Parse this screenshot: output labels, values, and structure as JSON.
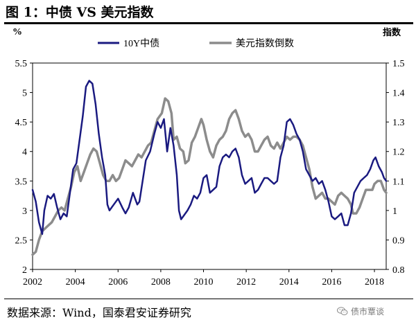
{
  "figure_title": "图 1：中债 VS 美元指数",
  "source_note": "数据来源：Wind，国泰君安证券研究",
  "watermark": {
    "text": "债市覃谈",
    "icon": "wechat-icon"
  },
  "chart_data": {
    "type": "line",
    "title": "",
    "ylabel_left": "%",
    "ylabel_right": "指数",
    "xlim": [
      2002,
      2018.55
    ],
    "ylim_left": [
      2,
      5.5
    ],
    "ylim_right": [
      0.8,
      1.5
    ],
    "x_ticks": [
      2002,
      2004,
      2006,
      2008,
      2010,
      2012,
      2014,
      2016,
      2018
    ],
    "x_tick_labels": [
      "2002",
      "2004",
      "2006",
      "2008",
      "2010",
      "2012",
      "2014",
      "2016",
      "2018"
    ],
    "y_left_ticks": [
      2,
      2.5,
      3,
      3.5,
      4,
      4.5,
      5,
      5.5
    ],
    "y_left_tick_labels": [
      "2",
      "2.5",
      "3",
      "3.5",
      "4",
      "4.5",
      "5",
      "5.5"
    ],
    "y_right_ticks": [
      0.8,
      0.9,
      1.0,
      1.1,
      1.2,
      1.3,
      1.4,
      1.5
    ],
    "y_right_tick_labels": [
      "0.8",
      "0.9",
      "1",
      "1.1",
      "1.2",
      "1.3",
      "1.4",
      "1.5"
    ],
    "grid": false,
    "legend_position": "top-center",
    "series": [
      {
        "name": "10Y中债",
        "axis": "left",
        "color": "#1a1a80",
        "points": [
          [
            2002.0,
            3.35
          ],
          [
            2002.15,
            3.15
          ],
          [
            2002.3,
            2.8
          ],
          [
            2002.45,
            2.6
          ],
          [
            2002.55,
            3.0
          ],
          [
            2002.7,
            3.25
          ],
          [
            2002.85,
            3.2
          ],
          [
            2003.0,
            3.28
          ],
          [
            2003.15,
            3.05
          ],
          [
            2003.3,
            2.85
          ],
          [
            2003.45,
            2.95
          ],
          [
            2003.6,
            2.9
          ],
          [
            2003.75,
            3.3
          ],
          [
            2003.9,
            3.7
          ],
          [
            2004.05,
            3.8
          ],
          [
            2004.2,
            4.2
          ],
          [
            2004.35,
            4.6
          ],
          [
            2004.5,
            5.1
          ],
          [
            2004.65,
            5.2
          ],
          [
            2004.8,
            5.15
          ],
          [
            2004.95,
            4.8
          ],
          [
            2005.1,
            4.3
          ],
          [
            2005.25,
            3.9
          ],
          [
            2005.4,
            3.6
          ],
          [
            2005.5,
            3.1
          ],
          [
            2005.6,
            3.0
          ],
          [
            2005.8,
            3.1
          ],
          [
            2006.0,
            3.2
          ],
          [
            2006.2,
            3.05
          ],
          [
            2006.35,
            2.95
          ],
          [
            2006.5,
            3.05
          ],
          [
            2006.7,
            3.3
          ],
          [
            2006.9,
            3.1
          ],
          [
            2007.0,
            3.15
          ],
          [
            2007.15,
            3.5
          ],
          [
            2007.3,
            3.85
          ],
          [
            2007.5,
            4.0
          ],
          [
            2007.7,
            4.3
          ],
          [
            2007.85,
            4.5
          ],
          [
            2008.0,
            4.4
          ],
          [
            2008.15,
            4.55
          ],
          [
            2008.3,
            4.0
          ],
          [
            2008.45,
            4.4
          ],
          [
            2008.6,
            4.1
          ],
          [
            2008.75,
            3.6
          ],
          [
            2008.85,
            3.0
          ],
          [
            2008.95,
            2.85
          ],
          [
            2009.05,
            2.9
          ],
          [
            2009.25,
            3.0
          ],
          [
            2009.4,
            3.1
          ],
          [
            2009.55,
            3.25
          ],
          [
            2009.7,
            3.2
          ],
          [
            2009.85,
            3.3
          ],
          [
            2010.0,
            3.55
          ],
          [
            2010.15,
            3.6
          ],
          [
            2010.3,
            3.3
          ],
          [
            2010.45,
            3.35
          ],
          [
            2010.6,
            3.4
          ],
          [
            2010.75,
            3.75
          ],
          [
            2010.9,
            3.9
          ],
          [
            2011.05,
            3.95
          ],
          [
            2011.2,
            3.9
          ],
          [
            2011.35,
            4.0
          ],
          [
            2011.5,
            4.05
          ],
          [
            2011.65,
            3.9
          ],
          [
            2011.8,
            3.6
          ],
          [
            2011.95,
            3.45
          ],
          [
            2012.1,
            3.5
          ],
          [
            2012.25,
            3.55
          ],
          [
            2012.4,
            3.3
          ],
          [
            2012.55,
            3.35
          ],
          [
            2012.7,
            3.45
          ],
          [
            2012.85,
            3.55
          ],
          [
            2013.0,
            3.55
          ],
          [
            2013.15,
            3.5
          ],
          [
            2013.3,
            3.45
          ],
          [
            2013.45,
            3.5
          ],
          [
            2013.6,
            3.9
          ],
          [
            2013.75,
            4.1
          ],
          [
            2013.9,
            4.5
          ],
          [
            2014.05,
            4.55
          ],
          [
            2014.2,
            4.45
          ],
          [
            2014.35,
            4.3
          ],
          [
            2014.5,
            4.2
          ],
          [
            2014.65,
            4.0
          ],
          [
            2014.8,
            3.7
          ],
          [
            2014.95,
            3.6
          ],
          [
            2015.1,
            3.5
          ],
          [
            2015.25,
            3.55
          ],
          [
            2015.4,
            3.45
          ],
          [
            2015.55,
            3.5
          ],
          [
            2015.7,
            3.35
          ],
          [
            2015.85,
            3.15
          ],
          [
            2016.0,
            2.9
          ],
          [
            2016.15,
            2.85
          ],
          [
            2016.3,
            2.9
          ],
          [
            2016.45,
            2.95
          ],
          [
            2016.6,
            2.75
          ],
          [
            2016.75,
            2.75
          ],
          [
            2016.9,
            2.95
          ],
          [
            2017.05,
            3.3
          ],
          [
            2017.2,
            3.4
          ],
          [
            2017.35,
            3.5
          ],
          [
            2017.5,
            3.55
          ],
          [
            2017.65,
            3.6
          ],
          [
            2017.8,
            3.7
          ],
          [
            2017.95,
            3.85
          ],
          [
            2018.05,
            3.9
          ],
          [
            2018.2,
            3.75
          ],
          [
            2018.35,
            3.65
          ],
          [
            2018.45,
            3.55
          ],
          [
            2018.55,
            3.5
          ]
        ]
      },
      {
        "name": "美元指数倒数",
        "axis": "right",
        "color": "#8c8c8c",
        "points": [
          [
            2002.0,
            0.85
          ],
          [
            2002.15,
            0.86
          ],
          [
            2002.3,
            0.9
          ],
          [
            2002.45,
            0.93
          ],
          [
            2002.6,
            0.94
          ],
          [
            2002.75,
            0.95
          ],
          [
            2002.9,
            0.96
          ],
          [
            2003.05,
            0.98
          ],
          [
            2003.2,
            1.0
          ],
          [
            2003.35,
            1.01
          ],
          [
            2003.5,
            1.0
          ],
          [
            2003.65,
            1.04
          ],
          [
            2003.8,
            1.08
          ],
          [
            2003.95,
            1.13
          ],
          [
            2004.1,
            1.15
          ],
          [
            2004.25,
            1.1
          ],
          [
            2004.4,
            1.13
          ],
          [
            2004.55,
            1.16
          ],
          [
            2004.7,
            1.19
          ],
          [
            2004.85,
            1.21
          ],
          [
            2005.0,
            1.2
          ],
          [
            2005.15,
            1.16
          ],
          [
            2005.3,
            1.12
          ],
          [
            2005.45,
            1.1
          ],
          [
            2005.6,
            1.1
          ],
          [
            2005.75,
            1.12
          ],
          [
            2005.9,
            1.1
          ],
          [
            2006.05,
            1.11
          ],
          [
            2006.2,
            1.14
          ],
          [
            2006.35,
            1.17
          ],
          [
            2006.5,
            1.16
          ],
          [
            2006.65,
            1.15
          ],
          [
            2006.8,
            1.17
          ],
          [
            2006.95,
            1.19
          ],
          [
            2007.1,
            1.18
          ],
          [
            2007.25,
            1.2
          ],
          [
            2007.4,
            1.22
          ],
          [
            2007.55,
            1.23
          ],
          [
            2007.7,
            1.27
          ],
          [
            2007.85,
            1.31
          ],
          [
            2008.05,
            1.33
          ],
          [
            2008.2,
            1.38
          ],
          [
            2008.35,
            1.37
          ],
          [
            2008.5,
            1.33
          ],
          [
            2008.6,
            1.24
          ],
          [
            2008.75,
            1.25
          ],
          [
            2008.9,
            1.21
          ],
          [
            2009.05,
            1.2
          ],
          [
            2009.15,
            1.16
          ],
          [
            2009.3,
            1.17
          ],
          [
            2009.45,
            1.23
          ],
          [
            2009.6,
            1.25
          ],
          [
            2009.75,
            1.28
          ],
          [
            2009.9,
            1.31
          ],
          [
            2010.0,
            1.29
          ],
          [
            2010.15,
            1.24
          ],
          [
            2010.3,
            1.2
          ],
          [
            2010.45,
            1.18
          ],
          [
            2010.6,
            1.22
          ],
          [
            2010.75,
            1.24
          ],
          [
            2010.9,
            1.25
          ],
          [
            2011.05,
            1.27
          ],
          [
            2011.2,
            1.31
          ],
          [
            2011.35,
            1.33
          ],
          [
            2011.5,
            1.34
          ],
          [
            2011.65,
            1.31
          ],
          [
            2011.8,
            1.27
          ],
          [
            2011.95,
            1.25
          ],
          [
            2012.1,
            1.26
          ],
          [
            2012.25,
            1.24
          ],
          [
            2012.4,
            1.2
          ],
          [
            2012.55,
            1.2
          ],
          [
            2012.7,
            1.22
          ],
          [
            2012.85,
            1.24
          ],
          [
            2013.0,
            1.25
          ],
          [
            2013.15,
            1.22
          ],
          [
            2013.3,
            1.21
          ],
          [
            2013.45,
            1.23
          ],
          [
            2013.6,
            1.21
          ],
          [
            2013.75,
            1.23
          ],
          [
            2013.9,
            1.25
          ],
          [
            2014.05,
            1.24
          ],
          [
            2014.2,
            1.25
          ],
          [
            2014.35,
            1.25
          ],
          [
            2014.5,
            1.24
          ],
          [
            2014.65,
            1.22
          ],
          [
            2014.8,
            1.18
          ],
          [
            2014.95,
            1.14
          ],
          [
            2015.1,
            1.08
          ],
          [
            2015.25,
            1.04
          ],
          [
            2015.4,
            1.05
          ],
          [
            2015.55,
            1.06
          ],
          [
            2015.7,
            1.04
          ],
          [
            2015.85,
            1.04
          ],
          [
            2016.0,
            1.03
          ],
          [
            2016.15,
            1.02
          ],
          [
            2016.3,
            1.05
          ],
          [
            2016.45,
            1.06
          ],
          [
            2016.6,
            1.05
          ],
          [
            2016.75,
            1.04
          ],
          [
            2016.9,
            1.02
          ],
          [
            2017.0,
            0.99
          ],
          [
            2017.15,
            0.99
          ],
          [
            2017.3,
            1.01
          ],
          [
            2017.45,
            1.04
          ],
          [
            2017.6,
            1.07
          ],
          [
            2017.75,
            1.07
          ],
          [
            2017.9,
            1.07
          ],
          [
            2018.0,
            1.09
          ],
          [
            2018.15,
            1.1
          ],
          [
            2018.3,
            1.1
          ],
          [
            2018.45,
            1.07
          ],
          [
            2018.55,
            1.06
          ]
        ]
      }
    ]
  }
}
